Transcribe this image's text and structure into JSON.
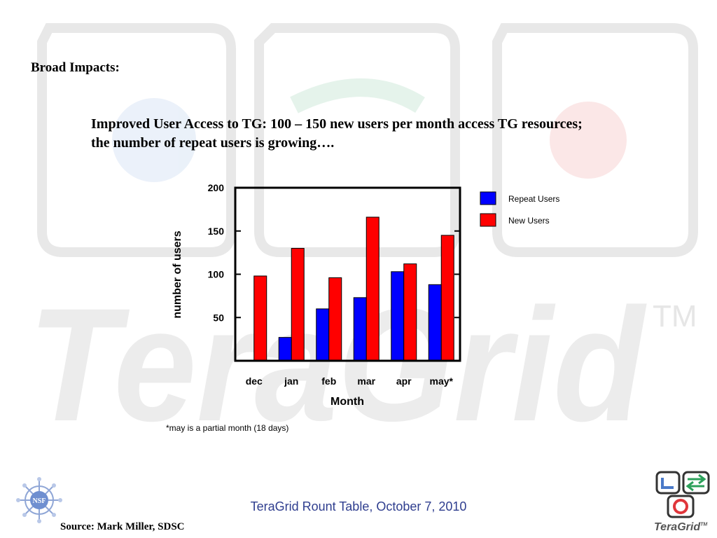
{
  "slide": {
    "heading": "Broad Impacts:",
    "subheading": "Improved User Access to TG:  100 – 150 new users per month access TG resources; the number of repeat users is growing….",
    "footnote": "*may is a partial month (18 days)",
    "footer": "TeraGrid Rount Table, October 7, 2010",
    "source": "Source: Mark Miller, SDSC",
    "watermark_text": "TeraGrid",
    "watermark_tm": "TM",
    "logo_word": "TeraGrid",
    "logo_tm": "TM",
    "nsf_text": "NSF"
  },
  "colors": {
    "repeat_users": "#0000ff",
    "new_users": "#ff0000",
    "footer_text": "#2f3e8f",
    "watermark": "#ececec"
  },
  "chart_data": {
    "type": "bar",
    "title": "",
    "xlabel": "Month",
    "ylabel": "number of users",
    "categories": [
      "dec",
      "jan",
      "feb",
      "mar",
      "apr",
      "may*"
    ],
    "series": [
      {
        "name": "Repeat Users",
        "color": "#0000ff",
        "values": [
          0,
          27,
          60,
          73,
          103,
          88
        ]
      },
      {
        "name": "New Users",
        "color": "#ff0000",
        "values": [
          98,
          130,
          96,
          166,
          112,
          145
        ]
      }
    ],
    "ylim": [
      0,
      200
    ],
    "yticks": [
      50,
      100,
      150,
      200
    ],
    "grid": false,
    "legend_position": "right"
  }
}
